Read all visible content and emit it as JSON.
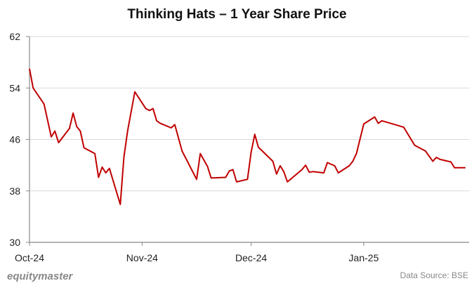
{
  "chart_data": {
    "type": "line",
    "title": "Thinking Hats – 1 Year Share Price",
    "xlabel": "",
    "ylabel": "",
    "xlim": [
      "2024-10-01",
      "2025-01-30"
    ],
    "ylim": [
      30,
      62
    ],
    "yticks": [
      30,
      38,
      46,
      54,
      62
    ],
    "xticks": [
      {
        "date": "2024-10-01",
        "label": "Oct-24"
      },
      {
        "date": "2024-11-01",
        "label": "Nov-24"
      },
      {
        "date": "2024-12-01",
        "label": "Dec-24"
      },
      {
        "date": "2025-01-01",
        "label": "Jan-25"
      }
    ],
    "grid": "horizontal",
    "line_color": "#c00000",
    "series": [
      {
        "x": [
          "2024-10-01",
          "2024-10-02",
          "2024-10-05",
          "2024-10-07",
          "2024-10-08",
          "2024-10-09",
          "2024-10-12",
          "2024-10-13",
          "2024-10-14",
          "2024-10-15",
          "2024-10-16",
          "2024-10-19",
          "2024-10-20",
          "2024-10-21",
          "2024-10-22",
          "2024-10-23",
          "2024-10-26",
          "2024-10-27",
          "2024-10-28",
          "2024-10-30",
          "2024-11-02",
          "2024-11-03",
          "2024-11-04",
          "2024-11-05",
          "2024-11-06",
          "2024-11-09",
          "2024-11-10",
          "2024-11-12",
          "2024-11-16",
          "2024-11-17",
          "2024-11-19",
          "2024-11-20",
          "2024-11-24",
          "2024-11-25",
          "2024-11-26",
          "2024-11-27",
          "2024-11-30",
          "2024-12-01",
          "2024-12-02",
          "2024-12-03",
          "2024-12-07",
          "2024-12-08",
          "2024-12-09",
          "2024-12-10",
          "2024-12-11",
          "2024-12-15",
          "2024-12-16",
          "2024-12-17",
          "2024-12-18",
          "2024-12-21",
          "2024-12-22",
          "2024-12-24",
          "2024-12-25",
          "2024-12-28",
          "2024-12-29",
          "2024-12-30",
          "2025-01-01",
          "2025-01-04",
          "2025-01-05",
          "2025-01-06",
          "2025-01-12",
          "2025-01-15",
          "2025-01-18",
          "2025-01-20",
          "2025-01-21",
          "2025-01-22",
          "2025-01-25",
          "2025-01-26",
          "2025-01-29"
        ],
        "y": [
          57.0,
          54.0,
          51.5,
          46.4,
          47.3,
          45.5,
          47.7,
          50.1,
          48.0,
          47.3,
          44.7,
          43.8,
          40.1,
          41.7,
          40.8,
          41.5,
          35.9,
          43.3,
          47.3,
          53.4,
          50.8,
          50.5,
          50.8,
          48.9,
          48.5,
          47.8,
          48.3,
          44.2,
          39.8,
          43.8,
          41.8,
          40.0,
          40.1,
          41.1,
          41.3,
          39.4,
          39.8,
          44.0,
          46.8,
          44.8,
          42.6,
          40.6,
          41.9,
          41.0,
          39.4,
          41.3,
          42.0,
          40.9,
          41.0,
          40.8,
          42.4,
          41.9,
          40.8,
          41.9,
          42.6,
          43.8,
          48.4,
          49.5,
          48.5,
          48.9,
          47.9,
          45.1,
          44.2,
          42.6,
          43.2,
          42.9,
          42.5,
          41.6,
          41.6
        ]
      }
    ]
  },
  "footer": {
    "logo": "equitymaster",
    "source": "Data Source: BSE"
  }
}
